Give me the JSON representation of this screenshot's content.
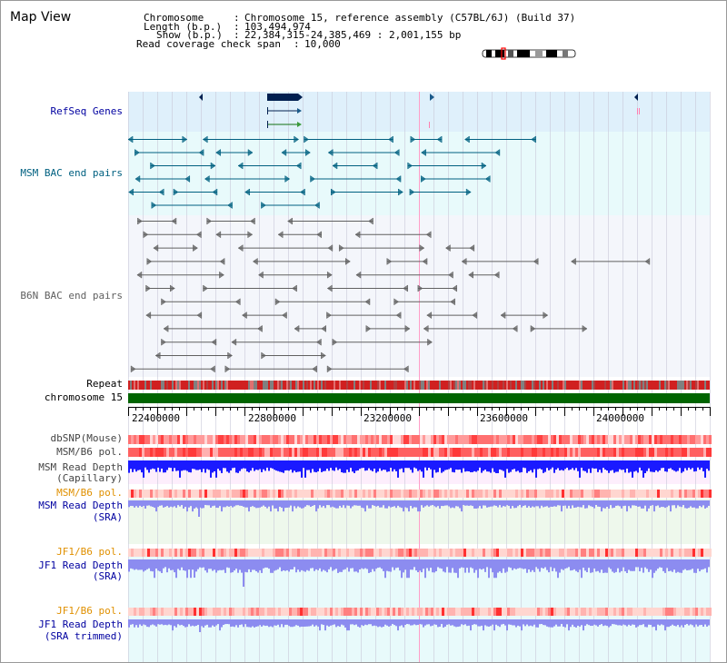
{
  "page": {
    "title": "Map View",
    "info": {
      "chromosome_label": "Chromosome",
      "chromosome_value": "Chromosome 15, reference assembly (C57BL/6J) (Build 37)",
      "length_label": "Length (b.p.)",
      "length_value": "103,494,974",
      "show_label": "Show (b.p.)",
      "show_value": "22,384,315-24,385,469 : 2,001,155 bp",
      "coverage_label": "Read coverage check span",
      "coverage_value": "10,000"
    }
  },
  "tracks": {
    "refseq": "RefSeq Genes",
    "msm_bac": "MSM BAC end pairs",
    "b6n_bac": "B6N BAC end pairs",
    "repeat": "Repeat",
    "chromosome": "chromosome 15",
    "dbsnp": "dbSNP(Mouse)",
    "msm_b6_pol_1": "MSM/B6 pol.",
    "msm_depth_cap_1": "MSM Read Depth",
    "msm_depth_cap_2": "(Capillary)",
    "msm_b6_pol_2": "MSM/B6 pol.",
    "msm_depth_sra_1": "MSM Read Depth",
    "msm_depth_sra_2": "(SRA)",
    "jf1_b6_pol_1": "JF1/B6 pol.",
    "jf1_depth_sra_1": "JF1 Read Depth",
    "jf1_depth_sra_2": "(SRA)",
    "jf1_b6_pol_2": "JF1/B6 pol.",
    "jf1_depth_trim_1": "JF1 Read Depth",
    "jf1_depth_trim_2": "(SRA trimmed)"
  },
  "axis": {
    "start": 22384315,
    "end": 24385469,
    "ticks": [
      "22400000",
      "22800000",
      "23200000",
      "23600000",
      "24000000"
    ]
  },
  "colors": {
    "refseq_bg": "#dff0fb",
    "msm_bg": "#e8fafb",
    "b6n_bg": "#f4f6fb",
    "label_blue": "#0000a0",
    "label_teal": "#006080",
    "label_orange": "#e09000",
    "gene": "#002050",
    "msm_feature": "#006080",
    "b6n_feature": "#606060",
    "chrom_green": "#006400",
    "repeat_red": "#d02020",
    "depth_dark": "#1a1aff",
    "depth_light": "#8c8cf0"
  }
}
